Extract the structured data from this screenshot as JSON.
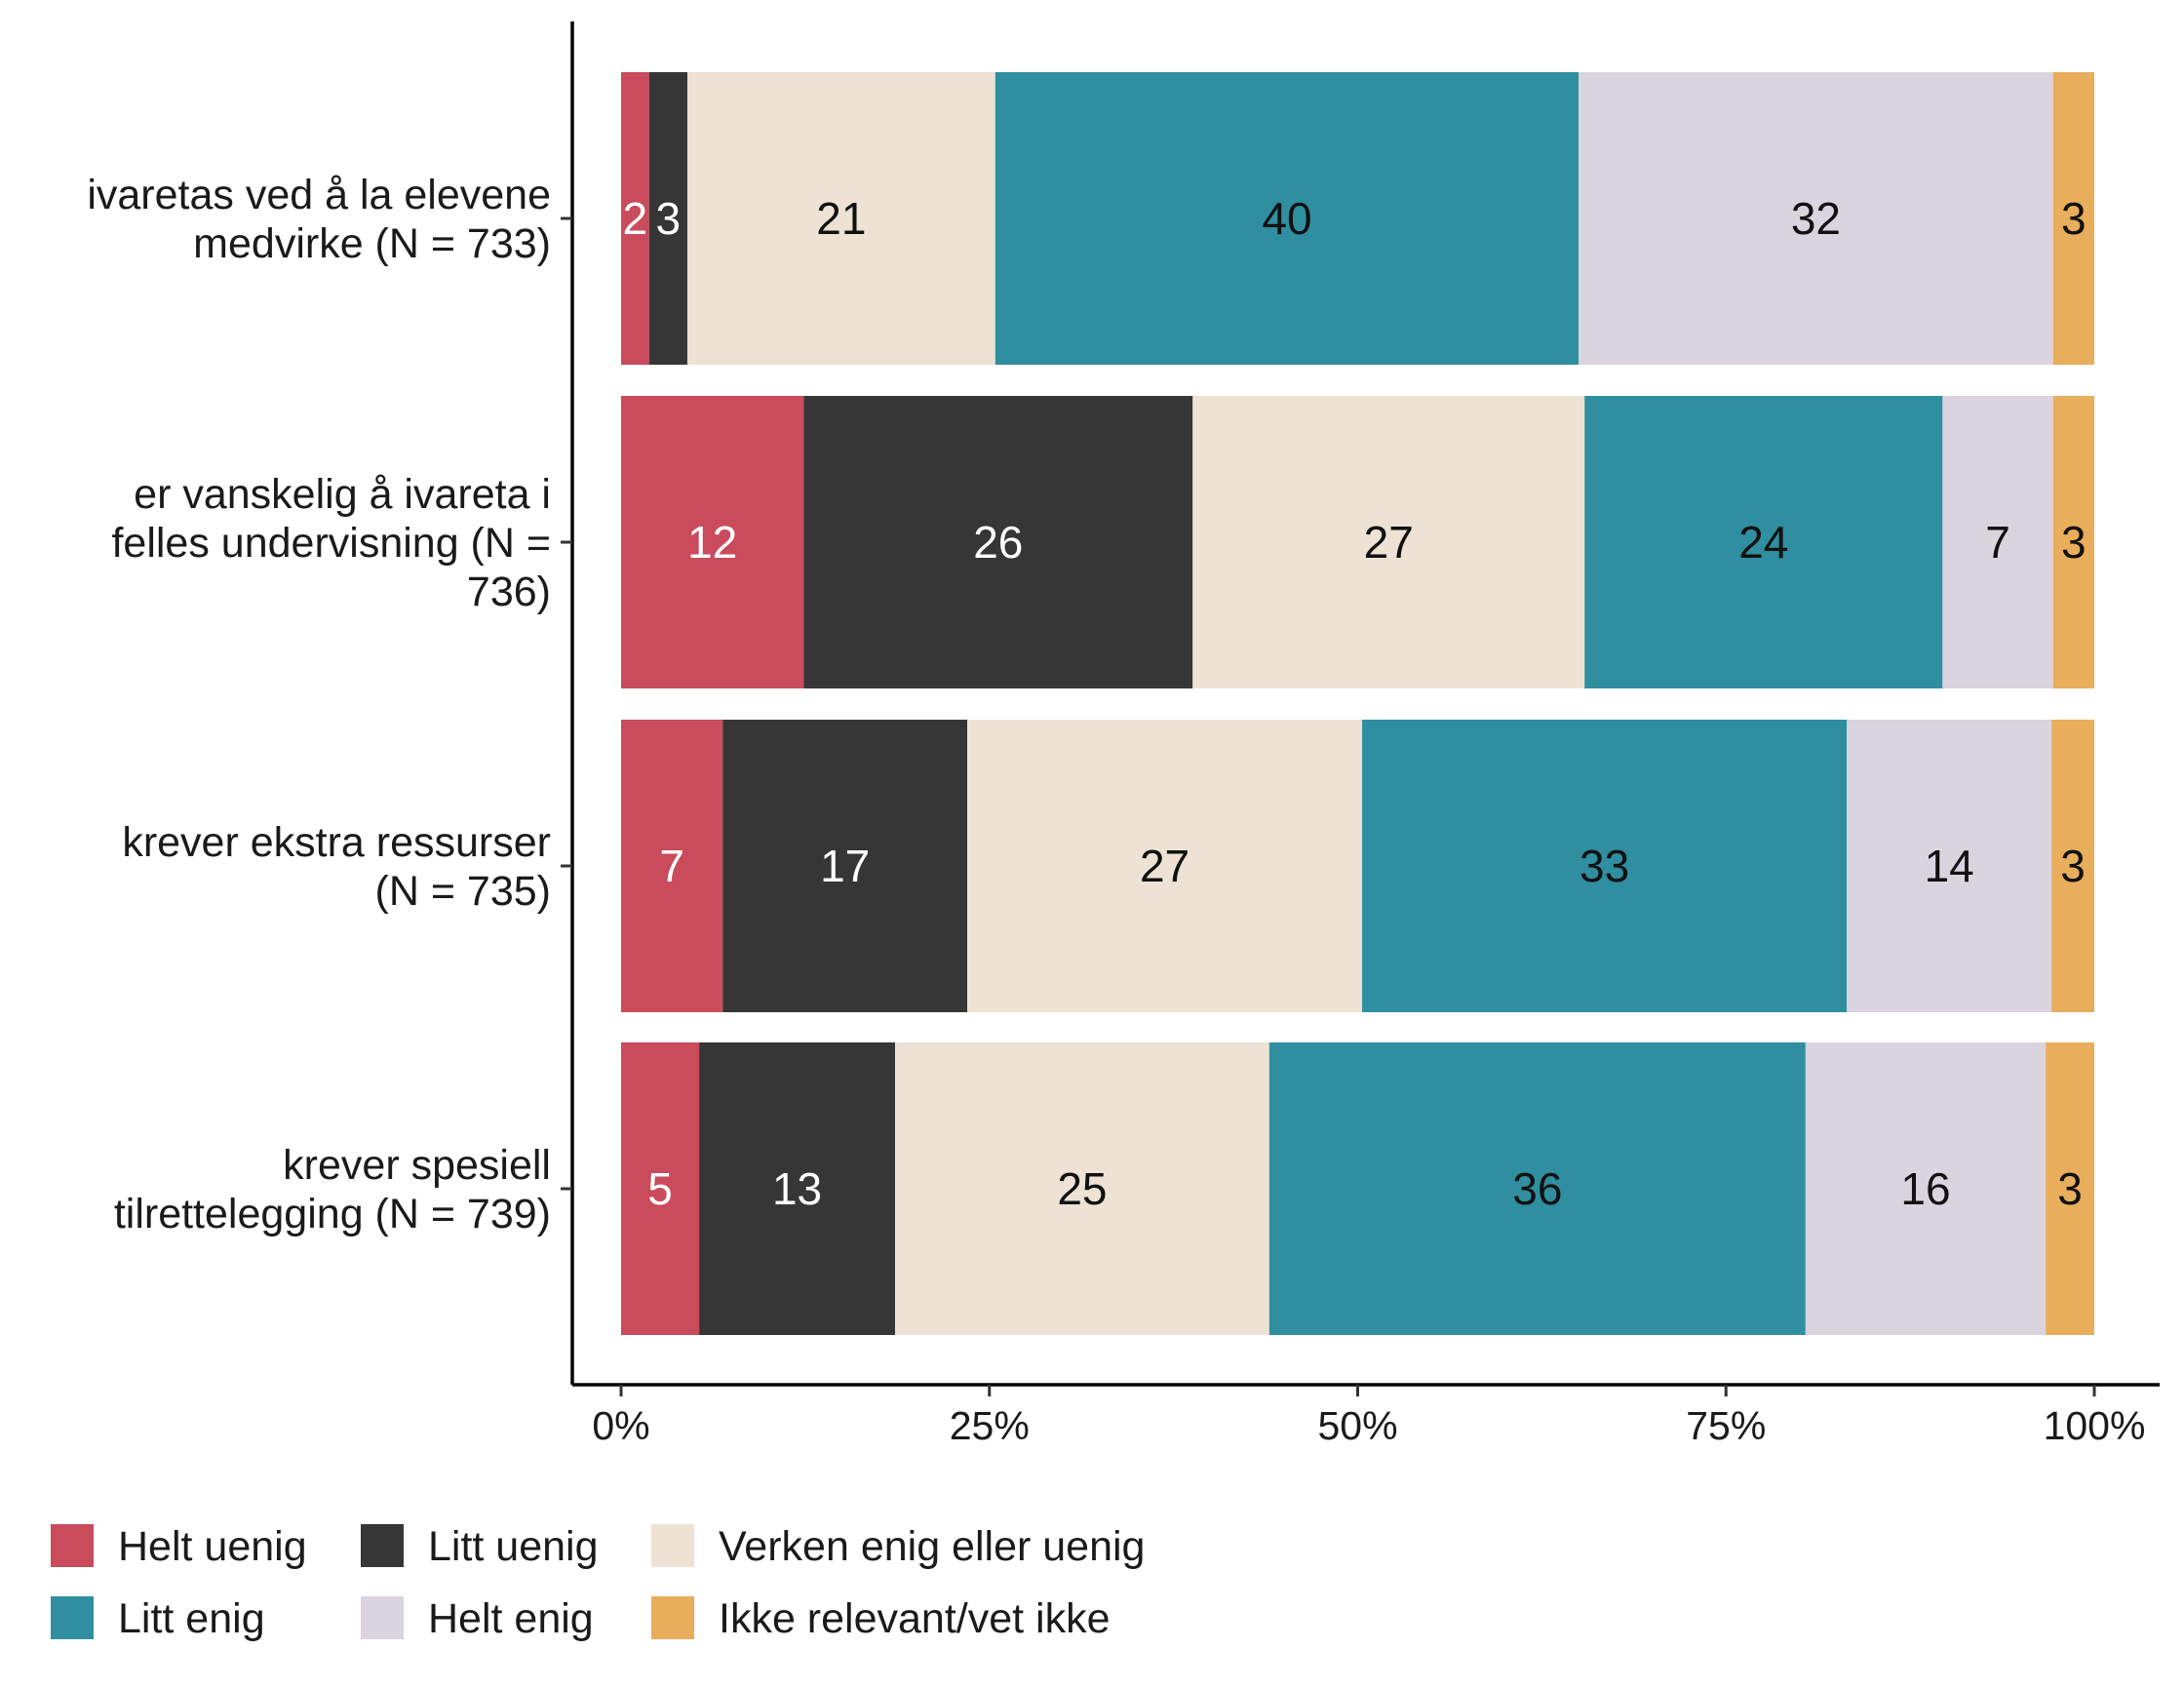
{
  "chart_data": {
    "type": "bar",
    "orientation": "horizontal",
    "stacked": "percent",
    "categories": [
      [
        "ivaretas ved å la elevene",
        "medvirke (N = 733)"
      ],
      [
        "er vanskelig å ivareta i",
        "felles undervisning (N =",
        "736)"
      ],
      [
        "krever ekstra ressurser",
        "(N = 735)"
      ],
      [
        "krever spesiell",
        "tilrettelegging (N = 739)"
      ]
    ],
    "series": [
      {
        "name": "Helt uenig",
        "color": "#C94B5C",
        "label_color": "#ffffff",
        "values": [
          1.9,
          12.4,
          6.9,
          5.3
        ],
        "labels": [
          "2",
          "12",
          "7",
          "5"
        ]
      },
      {
        "name": "Litt uenig",
        "color": "#363636",
        "label_color": "#ffffff",
        "values": [
          2.6,
          26.4,
          16.6,
          13.3
        ],
        "labels": [
          "3",
          "26",
          "17",
          "13"
        ]
      },
      {
        "name": "Verken enig eller uenig",
        "color": "#EDE2D3",
        "label_color": "#111111",
        "values": [
          20.9,
          26.6,
          26.8,
          25.4
        ],
        "labels": [
          "21",
          "27",
          "27",
          "25"
        ]
      },
      {
        "name": "Litt enig",
        "color": "#2F8E9F",
        "label_color": "#111111",
        "values": [
          39.6,
          24.3,
          32.9,
          36.4
        ],
        "labels": [
          "40",
          "24",
          "33",
          "36"
        ]
      },
      {
        "name": "Helt enig",
        "color": "#DAD4DF",
        "label_color": "#111111",
        "values": [
          32.2,
          7.5,
          13.9,
          16.3
        ],
        "labels": [
          "32",
          "7",
          "14",
          "16"
        ]
      },
      {
        "name": "Ikke relevant/vet ikke",
        "color": "#E8AE5C",
        "label_color": "#111111",
        "values": [
          2.8,
          2.8,
          2.9,
          3.3
        ],
        "labels": [
          "3",
          "3",
          "3",
          "3"
        ]
      }
    ],
    "xlim": [
      0,
      100
    ],
    "x_ticks": [
      "0%",
      "25%",
      "50%",
      "75%",
      "100%"
    ],
    "xlabel": "",
    "ylabel": "",
    "legend_position": "bottom",
    "grid": false
  }
}
